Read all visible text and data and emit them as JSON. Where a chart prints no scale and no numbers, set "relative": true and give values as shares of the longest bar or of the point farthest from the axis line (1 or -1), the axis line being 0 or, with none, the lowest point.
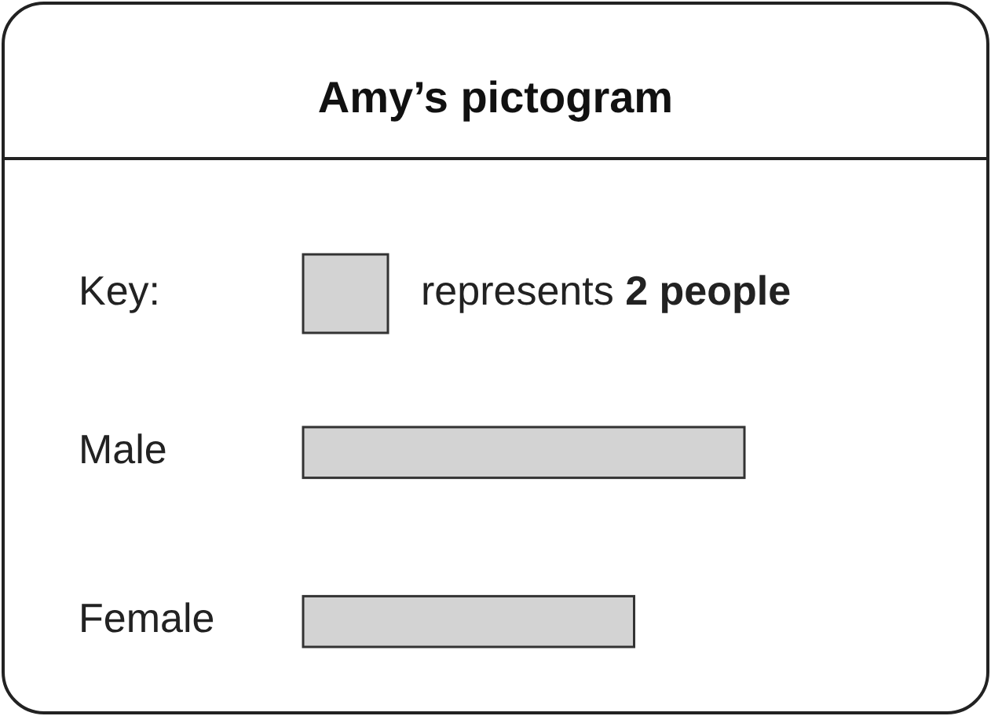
{
  "chart_data": {
    "type": "bar",
    "orientation": "horizontal",
    "relative": true,
    "title": "Amy’s pictogram",
    "categories": [
      "Male",
      "Female"
    ],
    "values": [
      1,
      0.75
    ],
    "color": "#d3d3d3",
    "annotations": [
      "Key:",
      "represents 2 people"
    ]
  }
}
